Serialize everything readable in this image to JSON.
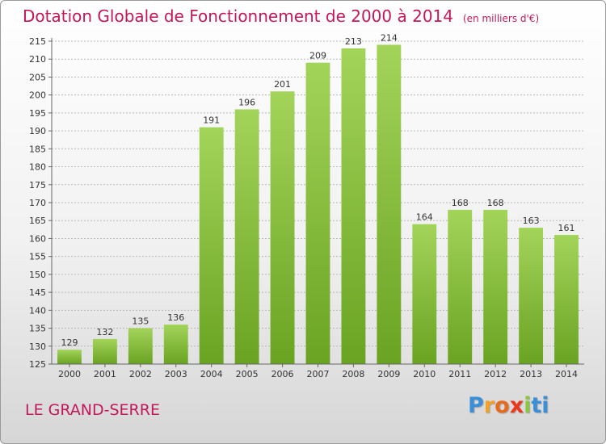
{
  "chart_data": {
    "type": "bar",
    "title": "Dotation Globale de Fonctionnement de 2000 à 2014",
    "unit_note": "(en milliers d'€)",
    "categories": [
      "2000",
      "2001",
      "2002",
      "2003",
      "2004",
      "2005",
      "2006",
      "2007",
      "2008",
      "2009",
      "2010",
      "2011",
      "2012",
      "2013",
      "2014"
    ],
    "values": [
      129,
      132,
      135,
      136,
      191,
      196,
      201,
      209,
      213,
      214,
      164,
      168,
      168,
      163,
      161
    ],
    "ylim": [
      125,
      215
    ],
    "yticks": [
      125,
      130,
      135,
      140,
      145,
      150,
      155,
      160,
      165,
      170,
      175,
      180,
      185,
      190,
      195,
      200,
      205,
      210,
      215
    ],
    "grid": true,
    "bar_color_top": "#a3d45a",
    "bar_color_bottom": "#6aa322"
  },
  "commune": "LE GRAND-SERRE",
  "logo": {
    "letters": [
      "P",
      "r",
      "o",
      "x",
      "i",
      "t",
      "i"
    ],
    "colors": [
      "#3a8fd8",
      "#f2a02a",
      "#e86a1e",
      "#e8391e",
      "#8cc63f",
      "#3a8fd8",
      "#3a8fd8"
    ]
  },
  "colors": {
    "title": "#c2185b",
    "grid": "#b9b9b9"
  }
}
